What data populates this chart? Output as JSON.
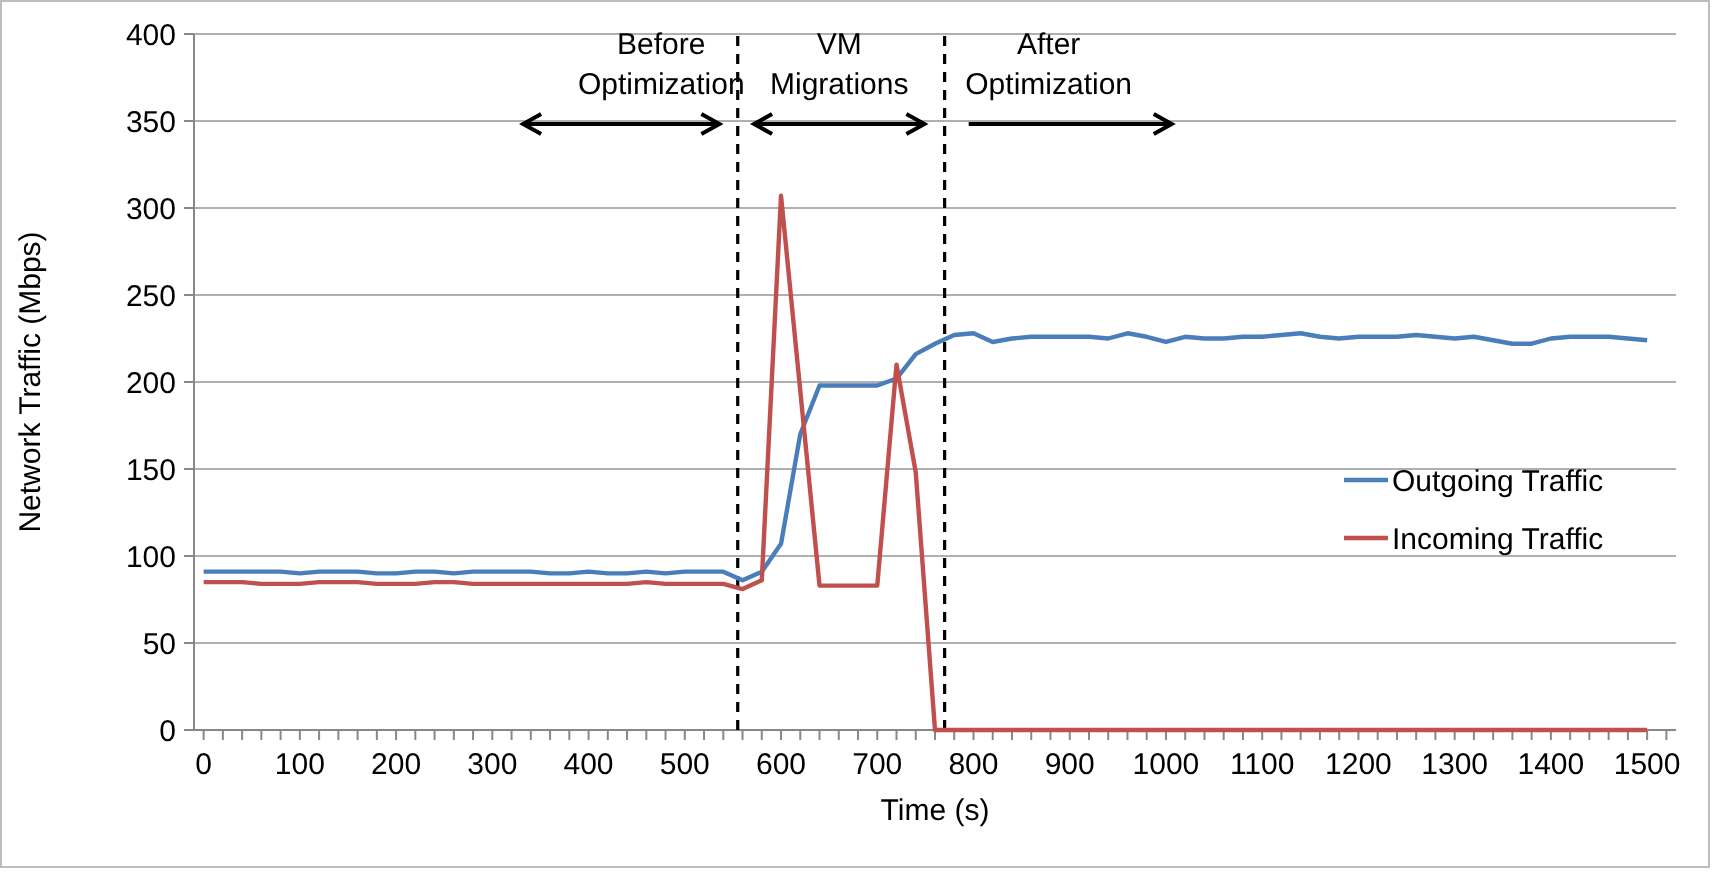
{
  "chart_data": {
    "type": "line",
    "xlabel": "Time (s)",
    "ylabel": "Network Traffic (Mbps)",
    "x": [
      0,
      20,
      40,
      60,
      80,
      100,
      120,
      140,
      160,
      180,
      200,
      220,
      240,
      260,
      280,
      300,
      320,
      340,
      360,
      380,
      400,
      420,
      440,
      460,
      480,
      500,
      520,
      540,
      560,
      580,
      600,
      620,
      640,
      660,
      680,
      700,
      720,
      740,
      760,
      780,
      800,
      820,
      840,
      860,
      880,
      900,
      920,
      940,
      960,
      980,
      1000,
      1020,
      1040,
      1060,
      1080,
      1100,
      1120,
      1140,
      1160,
      1180,
      1200,
      1220,
      1240,
      1260,
      1280,
      1300,
      1320,
      1340,
      1360,
      1380,
      1400,
      1420,
      1440,
      1460,
      1480,
      1500
    ],
    "series": [
      {
        "name": "Outgoing Traffic",
        "color": "#4a7ebb",
        "values": [
          91,
          91,
          91,
          91,
          91,
          90,
          91,
          91,
          91,
          90,
          90,
          91,
          91,
          90,
          91,
          91,
          91,
          91,
          90,
          90,
          91,
          90,
          90,
          91,
          90,
          91,
          91,
          91,
          86,
          91,
          107,
          170,
          198,
          198,
          198,
          198,
          202,
          216,
          222,
          227,
          228,
          223,
          225,
          226,
          226,
          226,
          226,
          225,
          228,
          226,
          223,
          226,
          225,
          225,
          226,
          226,
          227,
          228,
          226,
          225,
          226,
          226,
          226,
          227,
          226,
          225,
          226,
          224,
          222,
          222,
          225,
          226,
          226,
          226,
          225,
          224
        ]
      },
      {
        "name": "Incoming Traffic",
        "color": "#c0504d",
        "values": [
          85,
          85,
          85,
          84,
          84,
          84,
          85,
          85,
          85,
          84,
          84,
          84,
          85,
          85,
          84,
          84,
          84,
          84,
          84,
          84,
          84,
          84,
          84,
          85,
          84,
          84,
          84,
          84,
          81,
          86,
          307,
          195,
          83,
          83,
          83,
          83,
          210,
          148,
          0,
          0,
          0,
          0,
          0,
          0,
          0,
          0,
          0,
          0,
          0,
          0,
          0,
          0,
          0,
          0,
          0,
          0,
          0,
          0,
          0,
          0,
          0,
          0,
          0,
          0,
          0,
          0,
          0,
          0,
          0,
          0,
          0,
          0,
          0,
          0,
          0,
          0
        ]
      }
    ],
    "xlim": [
      -10,
      1530
    ],
    "xticks": [
      0,
      100,
      200,
      300,
      400,
      500,
      600,
      700,
      800,
      900,
      1000,
      1100,
      1200,
      1300,
      1400,
      1500
    ],
    "ylim": [
      0,
      400
    ],
    "yticks": [
      0,
      50,
      100,
      150,
      200,
      250,
      300,
      350,
      400
    ],
    "grid": "y",
    "legend": "right",
    "marker": "none",
    "line_style": "solid",
    "ref_lines": [
      {
        "axis": "x",
        "value": 555,
        "color": "#000000",
        "line_style": "dashed"
      },
      {
        "axis": "x",
        "value": 770,
        "color": "#000000",
        "line_style": "dashed"
      }
    ],
    "annotations": [
      "Before\nOptimization",
      "VM\nMigrations",
      "After\nOptimization"
    ]
  }
}
